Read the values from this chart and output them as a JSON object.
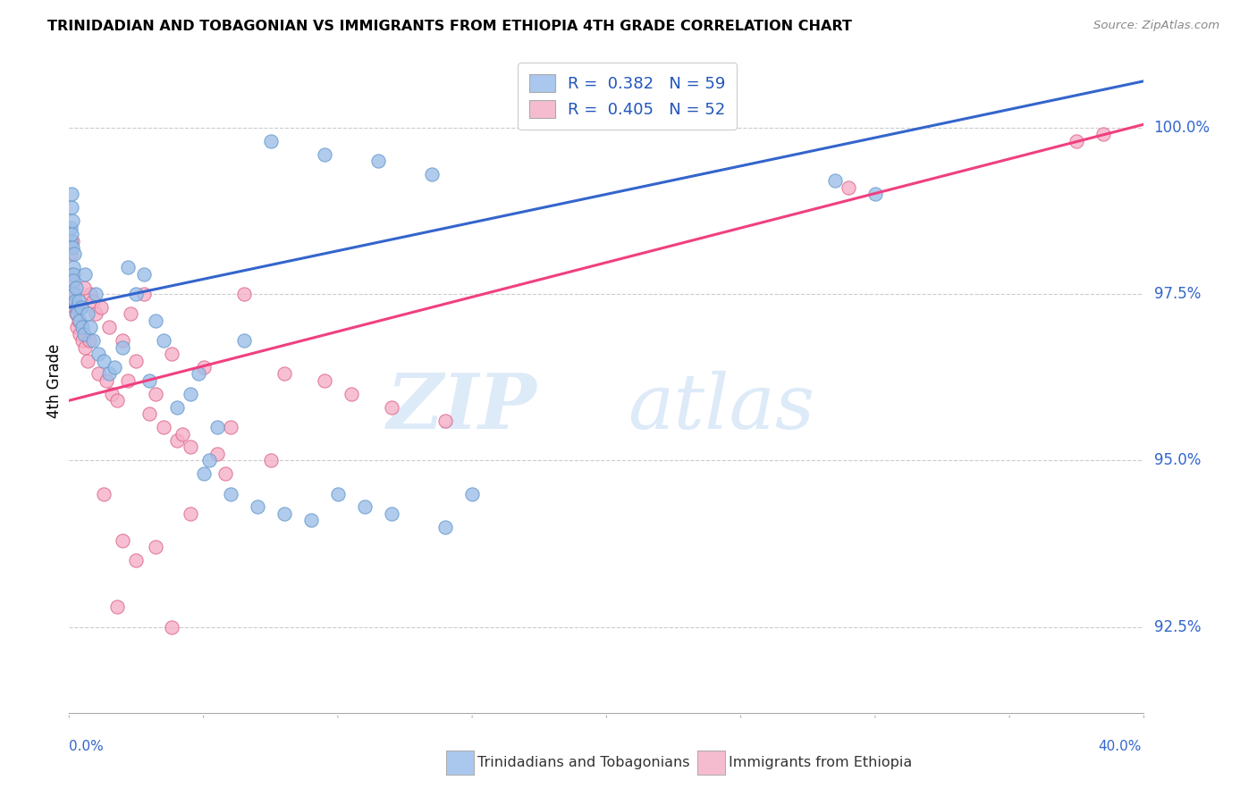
{
  "title": "TRINIDADIAN AND TOBAGONIAN VS IMMIGRANTS FROM ETHIOPIA 4TH GRADE CORRELATION CHART",
  "source": "Source: ZipAtlas.com",
  "ylabel": "4th Grade",
  "ylabel_values": [
    92.5,
    95.0,
    97.5,
    100.0
  ],
  "xlim": [
    0.0,
    40.0
  ],
  "ylim": [
    91.2,
    101.2
  ],
  "legend_blue_label": "R =  0.382   N = 59",
  "legend_pink_label": "R =  0.405   N = 52",
  "legend_blue_color": "#aac8ee",
  "legend_pink_color": "#f5bcd0",
  "blue_line_color": "#3465cc",
  "pink_line_color": "#f04080",
  "dot_blue_color": "#9dbfe8",
  "dot_pink_color": "#f5afc8",
  "watermark_zip": "ZIP",
  "watermark_atlas": "atlas",
  "watermark_color": "#ddeaf8",
  "blue_line_x0": 0.0,
  "blue_line_y0": 97.3,
  "blue_line_x1": 40.0,
  "blue_line_y1": 100.7,
  "pink_line_x0": 0.0,
  "pink_line_y0": 95.9,
  "pink_line_x1": 40.0,
  "pink_line_y1": 100.05,
  "footer_legend_blue": "Trinidadians and Tobagonians",
  "footer_legend_pink": "Immigrants from Ethiopia",
  "blue_scatter_x": [
    0.05,
    0.07,
    0.08,
    0.1,
    0.1,
    0.12,
    0.13,
    0.14,
    0.15,
    0.17,
    0.18,
    0.2,
    0.22,
    0.25,
    0.28,
    0.3,
    0.35,
    0.4,
    0.45,
    0.5,
    0.55,
    0.6,
    0.7,
    0.8,
    0.9,
    1.0,
    1.1,
    1.3,
    1.5,
    1.7,
    2.0,
    2.2,
    2.5,
    3.0,
    3.5,
    4.0,
    4.5,
    5.0,
    5.5,
    6.0,
    7.0,
    8.0,
    9.0,
    10.0,
    11.0,
    12.0,
    14.0,
    15.0,
    4.8,
    5.2,
    6.5,
    3.2,
    2.8,
    7.5,
    9.5,
    11.5,
    13.5,
    28.5,
    30.0
  ],
  "blue_scatter_y": [
    98.5,
    98.3,
    98.8,
    98.4,
    99.0,
    98.2,
    98.6,
    97.9,
    97.8,
    97.7,
    98.1,
    97.5,
    97.4,
    97.6,
    97.3,
    97.2,
    97.4,
    97.1,
    97.3,
    97.0,
    96.9,
    97.8,
    97.2,
    97.0,
    96.8,
    97.5,
    96.6,
    96.5,
    96.3,
    96.4,
    96.7,
    97.9,
    97.5,
    96.2,
    96.8,
    95.8,
    96.0,
    94.8,
    95.5,
    94.5,
    94.3,
    94.2,
    94.1,
    94.5,
    94.3,
    94.2,
    94.0,
    94.5,
    96.3,
    95.0,
    96.8,
    97.1,
    97.8,
    99.8,
    99.6,
    99.5,
    99.3,
    99.2,
    99.0
  ],
  "pink_scatter_x": [
    0.05,
    0.08,
    0.1,
    0.12,
    0.15,
    0.18,
    0.2,
    0.25,
    0.3,
    0.35,
    0.4,
    0.45,
    0.5,
    0.6,
    0.7,
    0.8,
    0.9,
    1.0,
    1.1,
    1.2,
    1.4,
    1.6,
    1.8,
    2.0,
    2.2,
    2.5,
    3.0,
    3.5,
    4.0,
    5.0,
    5.5,
    6.5,
    7.5,
    8.0,
    9.5,
    10.5,
    12.0,
    14.0,
    2.8,
    3.8,
    4.5,
    6.0,
    0.75,
    1.5,
    2.3,
    3.2,
    29.0,
    37.5,
    38.5,
    0.55,
    4.2,
    5.8
  ],
  "pink_scatter_y": [
    98.1,
    97.8,
    97.7,
    98.3,
    97.5,
    97.3,
    97.4,
    97.2,
    97.0,
    97.1,
    96.9,
    97.3,
    96.8,
    96.7,
    96.5,
    97.5,
    97.4,
    97.2,
    96.3,
    97.3,
    96.2,
    96.0,
    95.9,
    96.8,
    96.2,
    96.5,
    95.7,
    95.5,
    95.3,
    96.4,
    95.1,
    97.5,
    95.0,
    96.3,
    96.2,
    96.0,
    95.8,
    95.6,
    97.5,
    96.6,
    95.2,
    95.5,
    96.8,
    97.0,
    97.2,
    96.0,
    99.1,
    99.8,
    99.9,
    97.6,
    95.4,
    94.8
  ],
  "pink_scatter_extra_low_x": [
    1.3,
    2.0,
    2.5,
    3.2,
    4.5,
    1.8,
    3.8
  ],
  "pink_scatter_extra_low_y": [
    94.5,
    93.8,
    93.5,
    93.7,
    94.2,
    92.8,
    92.5
  ]
}
